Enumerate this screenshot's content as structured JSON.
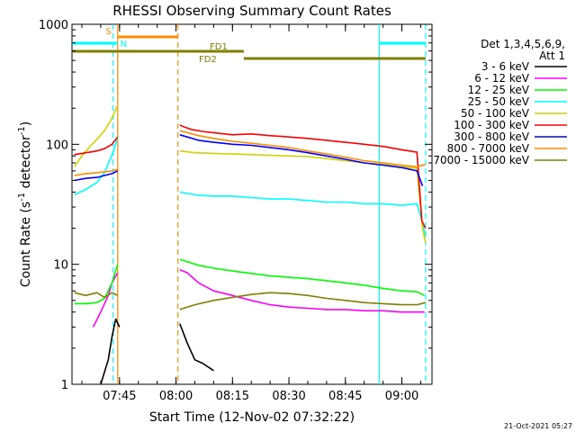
{
  "chart_data": {
    "type": "line",
    "title": "RHESSI Observing Summary Count Rates",
    "xlabel": "Start Time (12-Nov-02 07:32:22)",
    "ylabel": "Count Rate (s⁻¹ detector⁻¹)",
    "ylabel_main": "Count Rate (s",
    "ylabel_sup1": "-1",
    "ylabel_mid": " detector",
    "ylabel_sup2": "-1",
    "ylabel_end": ")",
    "yscale": "log",
    "ylim": [
      1,
      1000
    ],
    "xlim_minutes": [
      452.37,
      548.0
    ],
    "yticks": [
      {
        "value": 1,
        "label": "1"
      },
      {
        "value": 10,
        "label": "10"
      },
      {
        "value": 100,
        "label": "100"
      },
      {
        "value": 1000,
        "label": "1000"
      }
    ],
    "xticks": [
      {
        "minute": 465,
        "label": "07:45"
      },
      {
        "minute": 480,
        "label": "08:00"
      },
      {
        "minute": 495,
        "label": "08:15"
      },
      {
        "minute": 510,
        "label": "08:30"
      },
      {
        "minute": 525,
        "label": "08:45"
      },
      {
        "minute": 540,
        "label": "09:00"
      }
    ],
    "legend": {
      "header": [
        "Det 1,3,4,5,6,9,",
        "Att 1"
      ],
      "placement": "right",
      "entries": [
        {
          "label": "3 - 6 keV",
          "color": "#000000"
        },
        {
          "label": "6 - 12 keV",
          "color": "#ff00ff"
        },
        {
          "label": "12 - 25 keV",
          "color": "#00ff00"
        },
        {
          "label": "25 - 50 keV",
          "color": "#00ffff"
        },
        {
          "label": "50 - 100 keV",
          "color": "#d2d200"
        },
        {
          "label": "100 - 300 keV",
          "color": "#ff0000"
        },
        {
          "label": "300 - 800 keV",
          "color": "#0000ff"
        },
        {
          "label": "800 - 7000 keV",
          "color": "#ff8c00"
        },
        {
          "label": "7000 - 15000 keV",
          "color": "#808000"
        }
      ]
    },
    "flags": [
      {
        "label": "S",
        "color": "#ff8c00",
        "start": 464.5,
        "end": 480.5
      },
      {
        "label": "N",
        "color": "#00ffff",
        "start": 452.4,
        "end": 464.5
      },
      {
        "label": "N",
        "color": "#00ffff",
        "start": 534.0,
        "end": 546.3
      },
      {
        "label": "FD1",
        "color": "#808000",
        "start": 452.4,
        "end": 498.0
      },
      {
        "label": "FD2",
        "color": "#808000",
        "start": 498.0,
        "end": 546.3
      }
    ],
    "event_lines": [
      {
        "minute": 464.5,
        "color": "#ff8c00",
        "style": "solid"
      },
      {
        "minute": 463.3,
        "color": "#00ffff",
        "style": "dashed"
      },
      {
        "minute": 480.5,
        "color": "#ff8c00",
        "style": "dashed"
      },
      {
        "minute": 534.0,
        "color": "#00ffff",
        "style": "solid"
      },
      {
        "minute": 546.3,
        "color": "#00ffff",
        "style": "dashed"
      }
    ],
    "series": [
      {
        "name": "3 - 6 keV",
        "color": "#000000",
        "segments": [
          {
            "x": [
              460,
              462,
              463,
              464,
              465
            ],
            "y": [
              1,
              1.6,
              2.5,
              3.5,
              3
            ]
          },
          {
            "x": [
              481,
              483,
              485,
              487,
              490
            ],
            "y": [
              3.2,
              2.2,
              1.6,
              1.5,
              1.3
            ]
          }
        ]
      },
      {
        "name": "6 - 12 keV",
        "color": "#ff00ff",
        "segments": [
          {
            "x": [
              458,
              460,
              462,
              463,
              464,
              464.5
            ],
            "y": [
              3,
              4,
              5.5,
              7,
              8,
              8.5
            ]
          },
          {
            "x": [
              481,
              483,
              486,
              490,
              495,
              500,
              505,
              510,
              515,
              520,
              525,
              530,
              535,
              540,
              544,
              546
            ],
            "y": [
              9,
              8.5,
              7,
              6,
              5.5,
              5,
              4.6,
              4.4,
              4.3,
              4.2,
              4.2,
              4.1,
              4.1,
              4,
              4,
              4
            ]
          }
        ]
      },
      {
        "name": "12 - 25 keV",
        "color": "#00ff00",
        "segments": [
          {
            "x": [
              453,
              456,
              459,
              461,
              463,
              464.5
            ],
            "y": [
              4.7,
              4.7,
              4.8,
              5.2,
              7,
              10
            ]
          },
          {
            "x": [
              481,
              483,
              486,
              490,
              495,
              500,
              505,
              510,
              515,
              520,
              525,
              530,
              535,
              540,
              544,
              546
            ],
            "y": [
              11,
              10.5,
              9.8,
              9.3,
              8.8,
              8.4,
              8,
              7.8,
              7.6,
              7.3,
              7,
              6.7,
              6.3,
              6,
              5.9,
              5.5
            ]
          }
        ]
      },
      {
        "name": "25 - 50 keV",
        "color": "#00ffff",
        "segments": [
          {
            "x": [
              453,
              456,
              459,
              461,
              462.5,
              463.5,
              464.5
            ],
            "y": [
              38,
              42,
              48,
              58,
              75,
              90,
              115
            ]
          },
          {
            "x": [
              481,
              485,
              490,
              495,
              500,
              505,
              510,
              515,
              520,
              525,
              530,
              535,
              540,
              544,
              545.5,
              546.3
            ],
            "y": [
              40,
              38,
              37,
              37,
              36,
              35,
              35,
              34,
              33,
              33,
              32,
              32,
              31,
              32,
              22,
              17
            ]
          }
        ]
      },
      {
        "name": "50 - 100 keV",
        "color": "#d2d200",
        "segments": [
          {
            "x": [
              453,
              455,
              457,
              459,
              461,
              462.5,
              463.5,
              464.5
            ],
            "y": [
              65,
              80,
              95,
              110,
              130,
              155,
              180,
              210
            ]
          },
          {
            "x": [
              481,
              485,
              490,
              495,
              500,
              505,
              510,
              515,
              520,
              525,
              530,
              535,
              540,
              544,
              545.5,
              546.3
            ],
            "y": [
              88,
              85,
              84,
              83,
              82,
              81,
              80,
              79,
              76,
              73,
              70,
              68,
              65,
              63,
              20,
              15
            ]
          }
        ]
      },
      {
        "name": "100 - 300 keV",
        "color": "#ff0000",
        "segments": [
          {
            "x": [
              453,
              455,
              457,
              459,
              461,
              463,
              464.5
            ],
            "y": [
              82,
              84,
              86,
              88,
              92,
              100,
              115
            ]
          },
          {
            "x": [
              481,
              482,
              484,
              487,
              490,
              495,
              500,
              505,
              510,
              515,
              520,
              525,
              530,
              535,
              540,
              544,
              545.3,
              546.3
            ],
            "y": [
              145,
              140,
              133,
              128,
              125,
              120,
              122,
              118,
              115,
              112,
              108,
              104,
              100,
              96,
              90,
              86,
              23,
              20
            ]
          }
        ]
      },
      {
        "name": "300 - 800 keV",
        "color": "#0000ff",
        "segments": [
          {
            "x": [
              453,
              456,
              459,
              461,
              463,
              464.5
            ],
            "y": [
              50,
              52,
              53,
              55,
              57,
              60
            ]
          },
          {
            "x": [
              481,
              483,
              486,
              490,
              495,
              500,
              505,
              510,
              515,
              520,
              525,
              530,
              535,
              540,
              544,
              545.5
            ],
            "y": [
              120,
              115,
              108,
              104,
              100,
              98,
              94,
              90,
              85,
              80,
              75,
              70,
              67,
              64,
              60,
              45
            ]
          }
        ]
      },
      {
        "name": "800 - 7000 keV",
        "color": "#ff8c00",
        "segments": [
          {
            "x": [
              453,
              456,
              459,
              461,
              463,
              464.5
            ],
            "y": [
              55,
              57,
              58,
              59,
              60,
              62
            ]
          },
          {
            "x": [
              481,
              483,
              486,
              490,
              495,
              500,
              505,
              510,
              515,
              520,
              525,
              530,
              535,
              540,
              544,
              546.3
            ],
            "y": [
              130,
              125,
              118,
              112,
              106,
              102,
              98,
              94,
              88,
              83,
              78,
              73,
              70,
              67,
              65,
              68
            ]
          }
        ]
      },
      {
        "name": "7000 - 15000 keV",
        "color": "#808000",
        "segments": [
          {
            "x": [
              453,
              456,
              459,
              461,
              463,
              464.5
            ],
            "y": [
              5.8,
              5.5,
              5.8,
              5.3,
              5.8,
              5.5
            ]
          },
          {
            "x": [
              481,
              485,
              490,
              495,
              500,
              505,
              510,
              515,
              520,
              525,
              530,
              535,
              540,
              544,
              546.3
            ],
            "y": [
              4.2,
              4.6,
              5,
              5.3,
              5.6,
              5.8,
              5.7,
              5.5,
              5.2,
              5,
              4.8,
              4.7,
              4.6,
              4.6,
              4.8
            ]
          }
        ]
      }
    ],
    "grid": false
  },
  "footer": {
    "timestamp": "21-Oct-2021 05:27"
  }
}
